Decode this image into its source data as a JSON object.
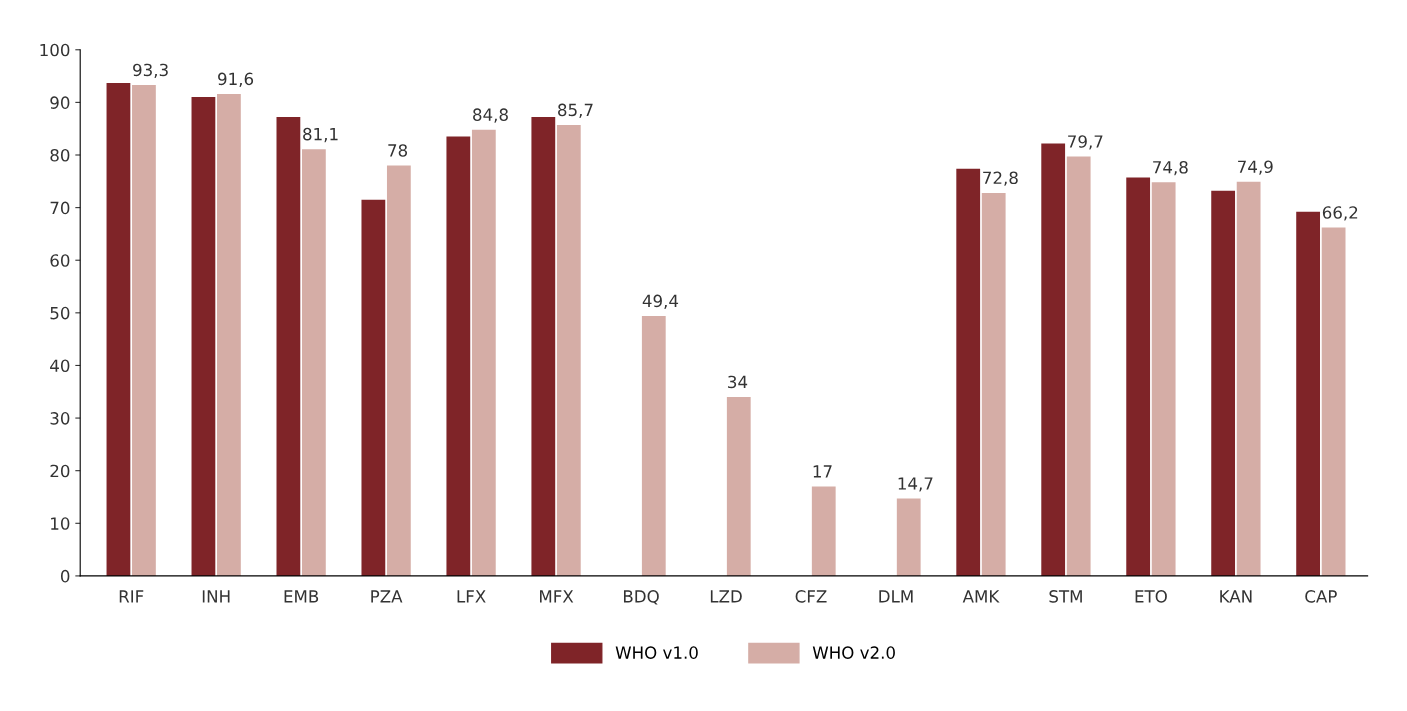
{
  "chart_data": {
    "type": "bar",
    "categories": [
      "RIF",
      "INH",
      "EMB",
      "PZA",
      "LFX",
      "MFX",
      "BDQ",
      "LZD",
      "CFZ",
      "DLM",
      "AMK",
      "STM",
      "ETO",
      "KAN",
      "CAP"
    ],
    "series": [
      {
        "name": "WHO v1.0",
        "color": "#7f2428",
        "values": [
          93.7,
          91.0,
          87.2,
          71.5,
          83.5,
          87.2,
          null,
          null,
          null,
          null,
          77.4,
          82.2,
          75.7,
          73.2,
          69.2
        ]
      },
      {
        "name": "WHO v2.0",
        "color": "#d5ada6",
        "values": [
          93.3,
          91.6,
          81.1,
          78,
          84.8,
          85.7,
          49.4,
          34,
          17,
          14.7,
          72.8,
          79.7,
          74.8,
          74.9,
          66.2
        ],
        "value_labels": [
          "93,3",
          "91,6",
          "81,1",
          "78",
          "84,8",
          "85,7",
          "49,4",
          "34",
          "17",
          "14,7",
          "72,8",
          "79,7",
          "74,8",
          "74,9",
          "66,2"
        ]
      }
    ],
    "ylim": [
      0,
      100
    ],
    "yticks": [
      0,
      10,
      20,
      30,
      40,
      50,
      60,
      70,
      80,
      90,
      100
    ],
    "grid": false,
    "legend": "bottom"
  }
}
